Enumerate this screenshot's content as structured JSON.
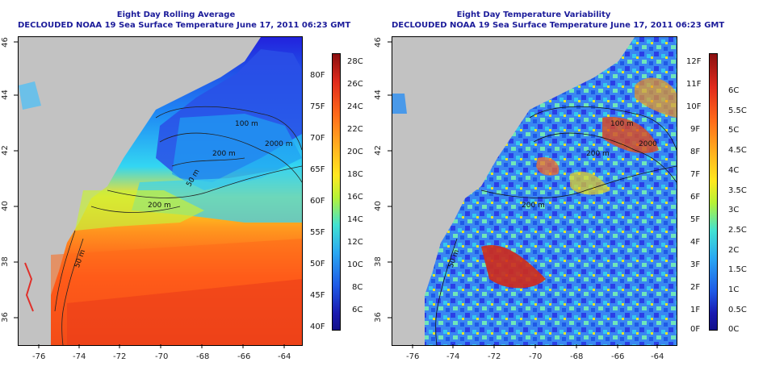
{
  "left": {
    "title": "Eight Day Rolling Average",
    "subtitle": "DECLOUDED NOAA 19 Sea Surface Temperature June 17, 2011 06:23 GMT",
    "colorbar_c": [
      "28C",
      "26C",
      "24C",
      "22C",
      "20C",
      "18C",
      "16C",
      "14C",
      "12C",
      "10C",
      "8C",
      "6C"
    ],
    "colorbar_f": [
      "80F",
      "75F",
      "70F",
      "65F",
      "60F",
      "55F",
      "50F",
      "45F",
      "40F"
    ],
    "contours": [
      "100 m",
      "200 m",
      "200 m",
      "2000 m",
      "50 m",
      "50 m"
    ]
  },
  "right": {
    "title": "Eight Day Temperature Variability",
    "subtitle": "DECLOUDED NOAA 19 Sea Surface Temperature June 17, 2011 06:23 GMT",
    "colorbar_f": [
      "12F",
      "11F",
      "10F",
      "9F",
      "8F",
      "7F",
      "6F",
      "5F",
      "4F",
      "3F",
      "2F",
      "1F",
      "0F"
    ],
    "colorbar_c": [
      "6C",
      "5.5C",
      "5C",
      "4.5C",
      "4C",
      "3.5C",
      "3C",
      "2.5C",
      "2C",
      "1.5C",
      "1C",
      "0.5C",
      "0C"
    ],
    "contours": [
      "100 m",
      "200 m",
      "2000",
      "200 m",
      "50 m"
    ]
  },
  "axes": {
    "x_ticks": [
      "-76",
      "-74",
      "-72",
      "-70",
      "-68",
      "-66",
      "-64"
    ],
    "y_ticks": [
      "46",
      "44",
      "42",
      "40",
      "38",
      "36"
    ]
  },
  "colors": {
    "title": "#1c1c9a",
    "land": "#c2c2c2"
  }
}
